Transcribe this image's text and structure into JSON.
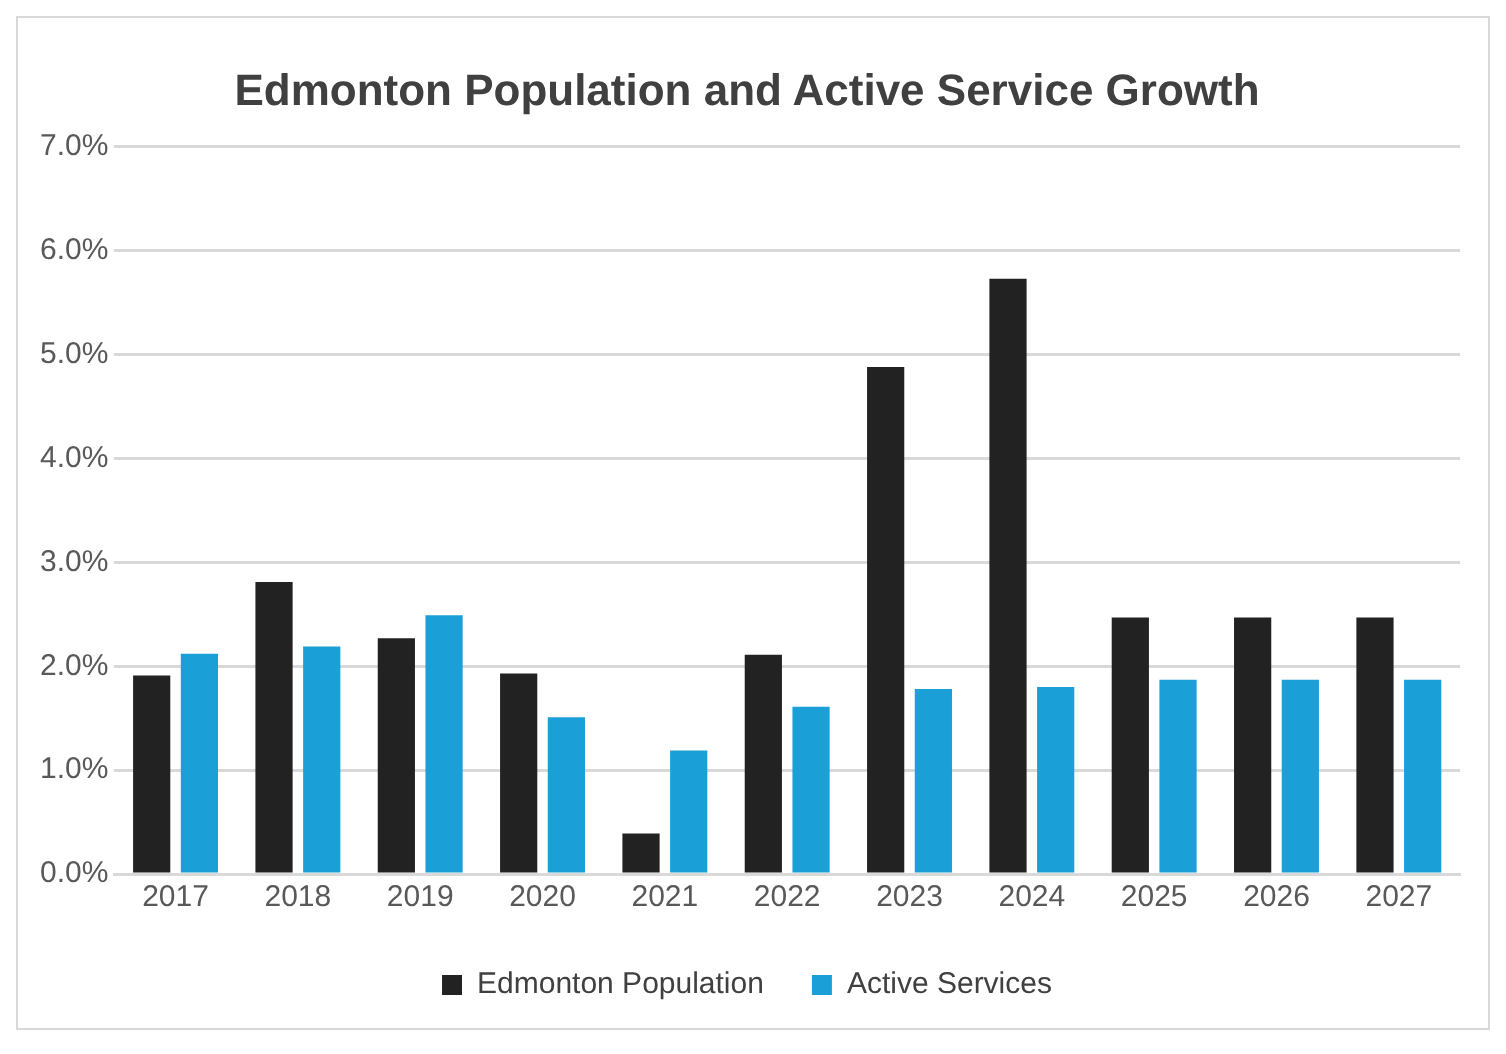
{
  "chart_data": {
    "type": "bar",
    "title": "Edmonton Population and Active Service Growth",
    "categories": [
      "2017",
      "2018",
      "2019",
      "2020",
      "2021",
      "2022",
      "2023",
      "2024",
      "2025",
      "2026",
      "2027"
    ],
    "series": [
      {
        "name": "Edmonton Population",
        "color": "#222222",
        "values": [
          1.91,
          2.81,
          2.27,
          1.93,
          0.39,
          2.11,
          4.88,
          5.73,
          2.47,
          2.47,
          2.47
        ]
      },
      {
        "name": "Active Services",
        "color": "#1a9fd6",
        "values": [
          2.12,
          2.19,
          2.49,
          1.51,
          1.19,
          1.61,
          1.78,
          1.8,
          1.87,
          1.87,
          1.87
        ]
      }
    ],
    "ylim": [
      0,
      7
    ],
    "yticks": [
      {
        "value": 0,
        "label": "0.0%"
      },
      {
        "value": 1,
        "label": "1.0%"
      },
      {
        "value": 2,
        "label": "2.0%"
      },
      {
        "value": 3,
        "label": "3.0%"
      },
      {
        "value": 4,
        "label": "4.0%"
      },
      {
        "value": 5,
        "label": "5.0%"
      },
      {
        "value": 6,
        "label": "6.0%"
      },
      {
        "value": 7,
        "label": "7.0%"
      }
    ],
    "grid": "y",
    "legend": "bottom"
  }
}
